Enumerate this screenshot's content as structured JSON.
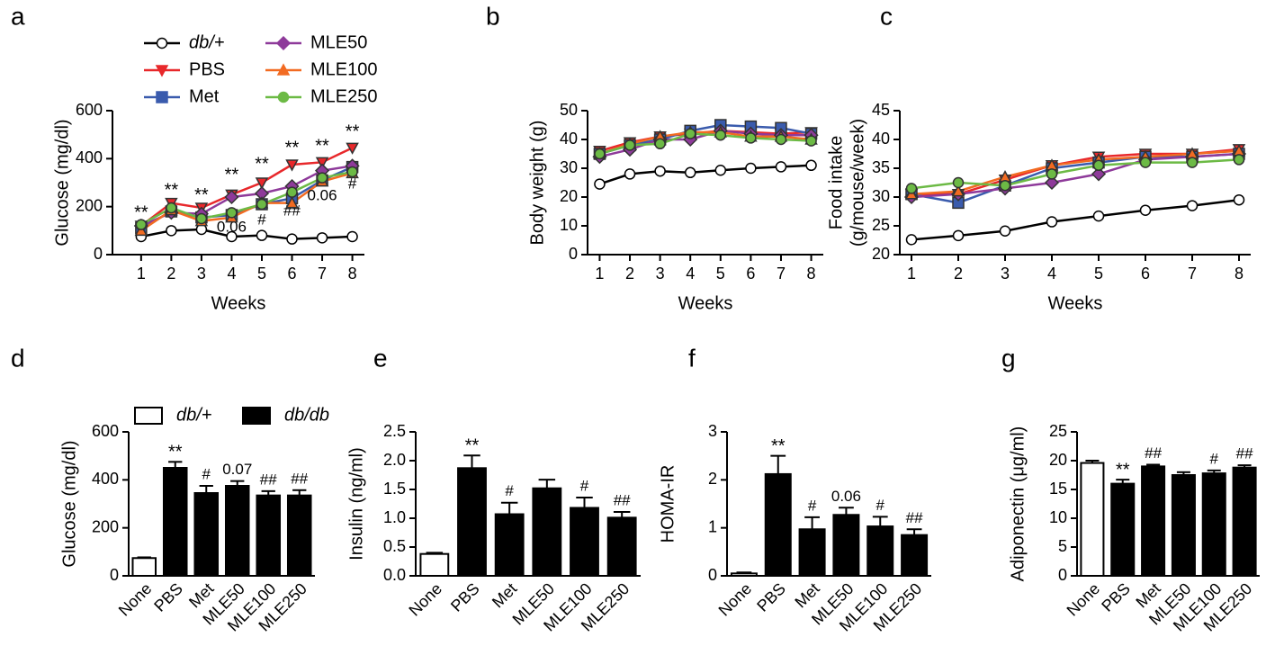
{
  "chart_data": [
    {
      "type": "line",
      "panel": "a",
      "xlabel": "Weeks",
      "ylabel": "Glucose (mg/dl)",
      "x": [
        1,
        2,
        3,
        4,
        5,
        6,
        7,
        8
      ],
      "xlim": [
        0.05,
        8.4
      ],
      "xticks": [
        1,
        2,
        3,
        4,
        5,
        6,
        7,
        8
      ],
      "ylim": [
        0,
        600
      ],
      "yticks": [
        0,
        200,
        400,
        600
      ],
      "series": [
        {
          "name": "db/+",
          "italic": true,
          "color": "#000000",
          "marker": "circle",
          "marker_fill": "#ffffff",
          "values": [
            75,
            100,
            105,
            75,
            80,
            65,
            70,
            75
          ]
        },
        {
          "name": "PBS",
          "color": "#e8282b",
          "marker": "triangle-down",
          "values": [
            120,
            215,
            195,
            250,
            300,
            375,
            385,
            445
          ]
        },
        {
          "name": "Met",
          "color": "#3a5bad",
          "marker": "square",
          "values": [
            110,
            180,
            155,
            165,
            210,
            235,
            310,
            365
          ]
        },
        {
          "name": "MLE50",
          "color": "#8e3a9a",
          "marker": "diamond",
          "values": [
            120,
            175,
            170,
            240,
            255,
            285,
            350,
            370
          ]
        },
        {
          "name": "MLE100",
          "color": "#f26b22",
          "marker": "triangle-up",
          "values": [
            100,
            185,
            140,
            155,
            215,
            215,
            305,
            340
          ]
        },
        {
          "name": "MLE250",
          "color": "#6cba45",
          "marker": "circle",
          "values": [
            125,
            195,
            150,
            175,
            210,
            260,
            320,
            345
          ]
        }
      ],
      "annotations": [
        {
          "text": "**",
          "x": 1,
          "y": 172
        },
        {
          "text": "**",
          "x": 2,
          "y": 266
        },
        {
          "text": "**",
          "x": 3,
          "y": 244
        },
        {
          "text": "**",
          "x": 4,
          "y": 330
        },
        {
          "text": "**",
          "x": 5,
          "y": 375
        },
        {
          "text": "**",
          "x": 6,
          "y": 442
        },
        {
          "text": "**",
          "x": 7,
          "y": 450
        },
        {
          "text": "**",
          "x": 8,
          "y": 510
        },
        {
          "text": "0.06",
          "x": 4,
          "y": 112
        },
        {
          "text": "#",
          "x": 5,
          "y": 142
        },
        {
          "text": "##",
          "x": 6,
          "y": 180
        },
        {
          "text": "0.06",
          "x": 7,
          "y": 244
        },
        {
          "text": "#",
          "x": 8,
          "y": 292
        }
      ]
    },
    {
      "type": "line",
      "panel": "b",
      "xlabel": "Weeks",
      "ylabel": "Body weight (g)",
      "x": [
        1,
        2,
        3,
        4,
        5,
        6,
        7,
        8
      ],
      "xlim": [
        0.6,
        8.4
      ],
      "xticks": [
        1,
        2,
        3,
        4,
        5,
        6,
        7,
        8
      ],
      "ylim": [
        0,
        50
      ],
      "yticks": [
        0,
        10,
        20,
        30,
        40,
        50
      ],
      "series": [
        {
          "color": "#000000",
          "marker": "circle",
          "marker_fill": "#ffffff",
          "values": [
            24.5,
            28,
            29,
            28.5,
            29.3,
            30,
            30.5,
            31
          ]
        },
        {
          "color": "#e8282b",
          "marker": "triangle-down",
          "values": [
            36,
            39,
            41,
            42,
            43,
            42.5,
            42,
            42.5
          ]
        },
        {
          "color": "#3a5bad",
          "marker": "square",
          "values": [
            35,
            38,
            40,
            43,
            45,
            44.5,
            44,
            42
          ]
        },
        {
          "color": "#8e3a9a",
          "marker": "diamond",
          "values": [
            34,
            36.5,
            40,
            40,
            43,
            42,
            41.5,
            41.5
          ]
        },
        {
          "color": "#f26b22",
          "marker": "triangle-up",
          "values": [
            35,
            38.5,
            41,
            42.5,
            42.5,
            41,
            41,
            40
          ]
        },
        {
          "color": "#6cba45",
          "marker": "circle",
          "values": [
            35,
            38,
            38.5,
            42,
            41.5,
            40.5,
            40,
            39.5
          ]
        }
      ]
    },
    {
      "type": "line",
      "panel": "c",
      "xlabel": "Weeks",
      "ylabel": [
        "Food intake",
        "(g/mouse/week)"
      ],
      "x": [
        1,
        2,
        3,
        4,
        5,
        6,
        7,
        8
      ],
      "xlim": [
        0.75,
        8.25
      ],
      "xticks": [
        1,
        2,
        3,
        4,
        5,
        6,
        7,
        8
      ],
      "ylim": [
        20,
        45
      ],
      "yticks": [
        20,
        25,
        30,
        35,
        40,
        45
      ],
      "series": [
        {
          "color": "#000000",
          "marker": "circle",
          "marker_fill": "#ffffff",
          "values": [
            22.6,
            23.3,
            24.1,
            25.7,
            26.7,
            27.7,
            28.5,
            29.5
          ]
        },
        {
          "color": "#e8282b",
          "marker": "triangle-down",
          "values": [
            30.5,
            30.5,
            33,
            35.5,
            37,
            37.5,
            37.5,
            38.3
          ]
        },
        {
          "color": "#3a5bad",
          "marker": "square",
          "values": [
            30.5,
            29,
            32,
            35,
            36,
            37,
            37,
            37.5
          ]
        },
        {
          "color": "#8e3a9a",
          "marker": "diamond",
          "values": [
            30,
            30.5,
            31.5,
            32.5,
            34,
            36.5,
            37,
            37.5
          ]
        },
        {
          "color": "#f26b22",
          "marker": "triangle-up",
          "values": [
            30.5,
            31,
            33.5,
            35.5,
            36.5,
            37,
            37.5,
            38
          ]
        },
        {
          "color": "#6cba45",
          "marker": "circle",
          "values": [
            31.5,
            32.5,
            32,
            34,
            35.5,
            36,
            36,
            36.5
          ]
        }
      ]
    },
    {
      "type": "bar",
      "panel": "d",
      "ylabel": "Glucose (mg/dl)",
      "categories": [
        "None",
        "PBS",
        "Met",
        "MLE50",
        "MLE100",
        "MLE250"
      ],
      "ylim": [
        0,
        600
      ],
      "yticks": [
        0,
        200,
        400,
        600
      ],
      "series": [
        {
          "name": "db/+",
          "italic": true,
          "color": "#ffffff",
          "values": [
            74,
            null,
            null,
            null,
            null,
            null
          ],
          "errors": [
            3,
            null,
            null,
            null,
            null,
            null
          ]
        },
        {
          "name": "db/db",
          "italic": true,
          "color": "#000000",
          "values": [
            null,
            450,
            345,
            375,
            335,
            335
          ],
          "errors": [
            null,
            25,
            30,
            20,
            18,
            22
          ]
        }
      ],
      "significance": [
        null,
        "**",
        "#",
        "0.07",
        "##",
        "##"
      ]
    },
    {
      "type": "bar",
      "panel": "e",
      "ylabel": "Insulin (ng/ml)",
      "categories": [
        "None",
        "PBS",
        "Met",
        "MLE50",
        "MLE100",
        "MLE250"
      ],
      "ylim": [
        0,
        2.5
      ],
      "yticks": [
        {
          "value": 0,
          "label": "0.0"
        },
        0.5,
        {
          "value": 1,
          "label": "1.0"
        },
        1.5,
        {
          "value": 2,
          "label": "2.0"
        },
        2.5
      ],
      "series": [
        {
          "color": "#ffffff",
          "values": [
            0.38,
            null,
            null,
            null,
            null,
            null
          ],
          "errors": [
            0.02,
            null,
            null,
            null,
            null,
            null
          ]
        },
        {
          "color": "#000000",
          "values": [
            null,
            1.87,
            1.07,
            1.52,
            1.18,
            1.01
          ],
          "errors": [
            null,
            0.22,
            0.2,
            0.15,
            0.18,
            0.1
          ]
        }
      ],
      "significance": [
        null,
        "**",
        "#",
        null,
        "#",
        "##"
      ]
    },
    {
      "type": "bar",
      "panel": "f",
      "ylabel": "HOMA-IR",
      "categories": [
        "None",
        "PBS",
        "Met",
        "MLE50",
        "MLE100",
        "MLE250"
      ],
      "ylim": [
        0,
        3
      ],
      "yticks": [
        0,
        1,
        2,
        3
      ],
      "series": [
        {
          "color": "#ffffff",
          "values": [
            0.05,
            null,
            null,
            null,
            null,
            null
          ],
          "errors": [
            0.02,
            null,
            null,
            null,
            null,
            null
          ]
        },
        {
          "color": "#000000",
          "values": [
            null,
            2.12,
            0.97,
            1.27,
            1.03,
            0.85
          ],
          "errors": [
            null,
            0.38,
            0.25,
            0.15,
            0.2,
            0.12
          ]
        }
      ],
      "significance": [
        null,
        "**",
        "#",
        "0.06",
        "#",
        "##"
      ]
    },
    {
      "type": "bar",
      "panel": "g",
      "ylabel": "Adiponectin (μg/ml)",
      "categories": [
        "None",
        "PBS",
        "Met",
        "MLE50",
        "MLE100",
        "MLE250"
      ],
      "ylim": [
        0,
        25
      ],
      "yticks": [
        0,
        5,
        10,
        15,
        20,
        25
      ],
      "series": [
        {
          "color": "#ffffff",
          "values": [
            19.6,
            null,
            null,
            null,
            null,
            null
          ],
          "errors": [
            0.4,
            null,
            null,
            null,
            null,
            null
          ]
        },
        {
          "color": "#000000",
          "values": [
            null,
            16,
            19,
            17.5,
            17.8,
            18.8
          ],
          "errors": [
            null,
            0.7,
            0.3,
            0.5,
            0.5,
            0.4
          ]
        }
      ],
      "significance": [
        null,
        "**",
        "##",
        null,
        "#",
        "##"
      ]
    }
  ]
}
